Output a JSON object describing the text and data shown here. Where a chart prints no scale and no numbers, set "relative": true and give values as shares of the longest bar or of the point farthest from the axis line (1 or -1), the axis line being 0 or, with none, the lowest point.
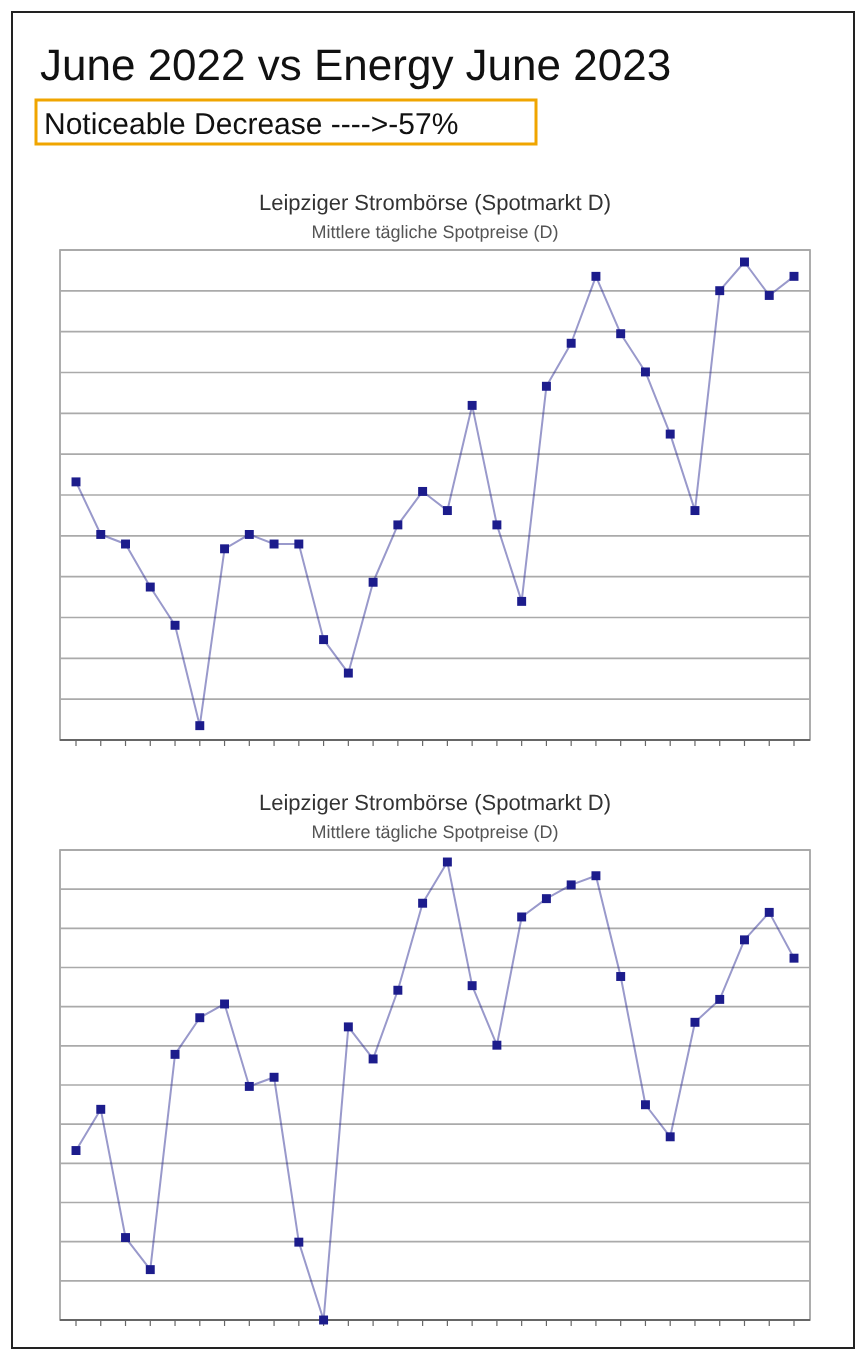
{
  "chart_data": [
    {
      "type": "other",
      "title": "June 2022 vs Energy June 2023",
      "subtitle": "Noticeable Decrease ---->-57%"
    },
    {
      "type": "line",
      "title": "Leipziger Strombörse (Spotmarkt D)",
      "subtitle": "Mittlere tägliche Spotpreise (D)",
      "relative": true,
      "grid": "y",
      "marker": "square",
      "categories": [
        null,
        null,
        null,
        null,
        null,
        null,
        null,
        null,
        null,
        null,
        null,
        null,
        null,
        null,
        null,
        null,
        null,
        null,
        null,
        null,
        null,
        null,
        null,
        null,
        null,
        null,
        null,
        null,
        null,
        null
      ],
      "series": [
        {
          "color": "#1c1c8c",
          "values": [
            0.54,
            0.43,
            0.41,
            0.32,
            0.24,
            0.03,
            0.4,
            0.43,
            0.41,
            0.41,
            0.21,
            0.14,
            0.33,
            0.45,
            0.52,
            0.48,
            0.7,
            0.45,
            0.29,
            0.74,
            0.83,
            0.97,
            0.85,
            0.77,
            0.64,
            0.48,
            0.94,
            1,
            0.93,
            0.97
          ]
        }
      ]
    },
    {
      "type": "line",
      "title": "Leipziger Strombörse (Spotmarkt D)",
      "subtitle": "Mittlere tägliche Spotpreise (D)",
      "relative": true,
      "grid": "y",
      "marker": "square",
      "categories": [
        null,
        null,
        null,
        null,
        null,
        null,
        null,
        null,
        null,
        null,
        null,
        null,
        null,
        null,
        null,
        null,
        null,
        null,
        null,
        null,
        null,
        null,
        null,
        null,
        null,
        null,
        null,
        null,
        null,
        null
      ],
      "series": [
        {
          "color": "#1c1c8c",
          "values": [
            0.37,
            0.46,
            0.18,
            0.11,
            0.58,
            0.66,
            0.69,
            0.51,
            0.53,
            0.17,
            0,
            0.64,
            0.57,
            0.72,
            0.91,
            1,
            0.73,
            0.6,
            0.88,
            0.92,
            0.95,
            0.97,
            0.75,
            0.47,
            0.4,
            0.65,
            0.7,
            0.83,
            0.89,
            0.79
          ]
        }
      ]
    }
  ]
}
